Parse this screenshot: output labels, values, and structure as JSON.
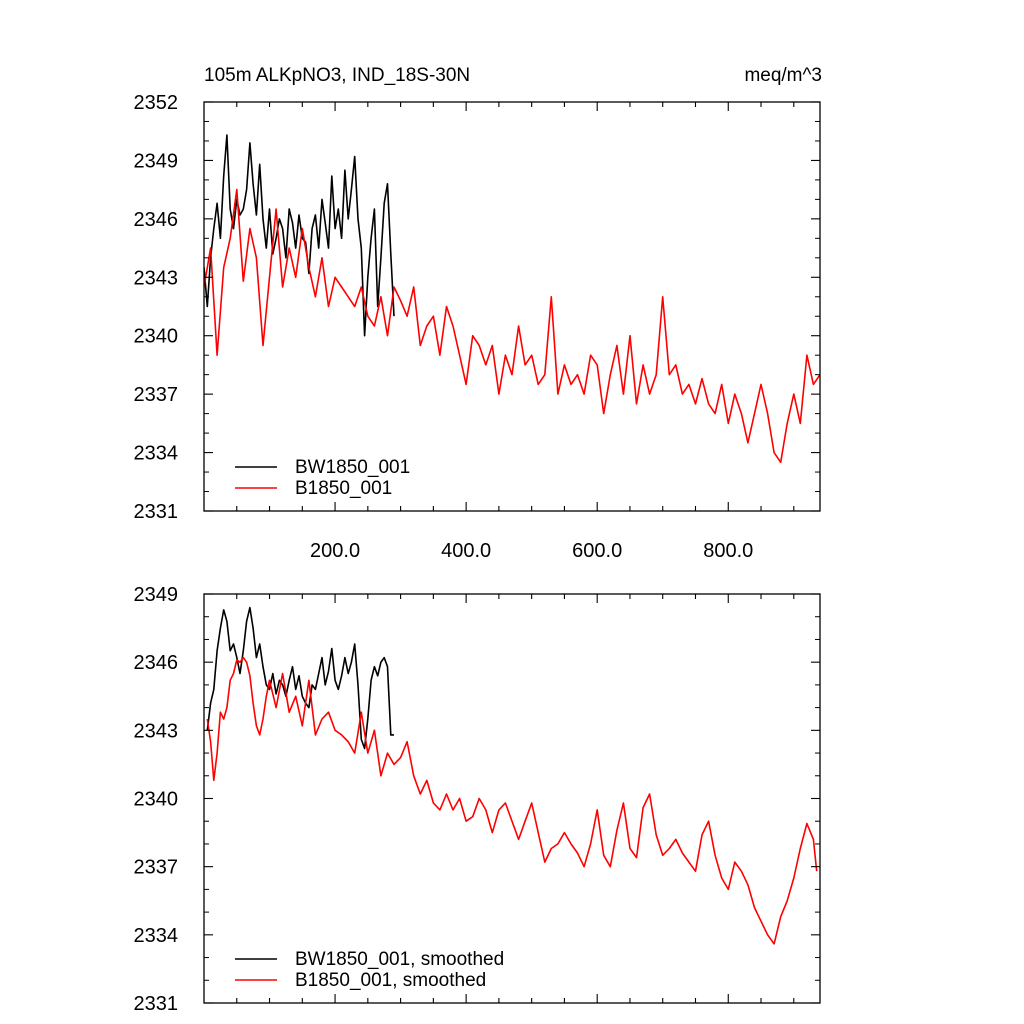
{
  "header": {
    "title": "105m ALKpNO3, IND_18S-30N",
    "units": "meq/m^3"
  },
  "chart_data": [
    {
      "type": "line",
      "title": "105m ALKpNO3, IND_18S-30N",
      "units": "meq/m^3",
      "xlim": [
        0,
        940
      ],
      "ylim": [
        2331,
        2352
      ],
      "yticks": [
        2331,
        2334,
        2337,
        2340,
        2343,
        2346,
        2349,
        2352
      ],
      "ytick_labels": [
        "2331",
        "2334",
        "2337",
        "2340",
        "2343",
        "2346",
        "2349",
        "2352"
      ],
      "xticks": [
        200,
        400,
        600,
        800
      ],
      "xtick_labels": [
        "200.0",
        "400.0",
        "600.0",
        "800.0"
      ],
      "legend": "bottom-left",
      "series": [
        {
          "name": "BW1850_001",
          "color": "#000000",
          "x": [
            0,
            5,
            10,
            15,
            20,
            25,
            30,
            35,
            40,
            45,
            50,
            55,
            60,
            65,
            70,
            75,
            80,
            85,
            90,
            95,
            100,
            105,
            110,
            115,
            120,
            125,
            130,
            135,
            140,
            145,
            150,
            155,
            160,
            165,
            170,
            175,
            180,
            185,
            190,
            195,
            200,
            205,
            210,
            215,
            220,
            225,
            230,
            235,
            240,
            245,
            250,
            255,
            260,
            265,
            270,
            275,
            280,
            285,
            290
          ],
          "y": [
            2343.5,
            2341.5,
            2344.0,
            2345.5,
            2346.8,
            2345.0,
            2348.2,
            2350.3,
            2346.5,
            2345.5,
            2347.0,
            2346.2,
            2346.5,
            2347.5,
            2349.9,
            2347.8,
            2346.2,
            2348.8,
            2346.0,
            2344.5,
            2346.5,
            2344.2,
            2345.0,
            2346.0,
            2345.5,
            2344.0,
            2346.5,
            2345.8,
            2344.5,
            2346.2,
            2345.0,
            2344.8,
            2343.2,
            2345.5,
            2346.2,
            2344.5,
            2347.0,
            2345.8,
            2344.5,
            2348.2,
            2345.5,
            2346.5,
            2345.0,
            2348.5,
            2346.0,
            2347.5,
            2349.2,
            2346.0,
            2344.5,
            2340.0,
            2343.0,
            2345.0,
            2346.5,
            2341.5,
            2344.0,
            2346.8,
            2347.8,
            2344.2,
            2341.0
          ]
        },
        {
          "name": "B1850_001",
          "color": "#ff0000",
          "x": [
            0,
            10,
            20,
            30,
            40,
            50,
            60,
            70,
            80,
            90,
            100,
            110,
            120,
            130,
            140,
            150,
            160,
            170,
            180,
            190,
            200,
            210,
            220,
            230,
            240,
            250,
            260,
            270,
            280,
            290,
            300,
            310,
            320,
            330,
            340,
            350,
            360,
            370,
            380,
            390,
            400,
            410,
            420,
            430,
            440,
            450,
            460,
            470,
            480,
            490,
            500,
            510,
            520,
            530,
            540,
            550,
            560,
            570,
            580,
            590,
            600,
            610,
            620,
            630,
            640,
            650,
            660,
            670,
            680,
            690,
            700,
            710,
            720,
            730,
            740,
            750,
            760,
            770,
            780,
            790,
            800,
            810,
            820,
            830,
            840,
            850,
            860,
            870,
            880,
            890,
            900,
            910,
            920,
            930,
            940
          ],
          "y": [
            2342.5,
            2344.5,
            2339.0,
            2343.5,
            2345.0,
            2347.5,
            2342.8,
            2345.5,
            2344.0,
            2339.5,
            2343.0,
            2346.5,
            2342.5,
            2344.5,
            2343.0,
            2345.5,
            2343.5,
            2342.0,
            2344.0,
            2341.5,
            2343.0,
            2342.5,
            2342.0,
            2341.5,
            2342.5,
            2341.0,
            2340.5,
            2342.0,
            2340.0,
            2342.5,
            2341.8,
            2341.0,
            2342.5,
            2339.5,
            2340.5,
            2341.0,
            2339.0,
            2341.5,
            2340.5,
            2339.0,
            2337.5,
            2340.0,
            2339.5,
            2338.5,
            2339.5,
            2337.0,
            2339.0,
            2338.0,
            2340.5,
            2338.5,
            2339.0,
            2337.5,
            2338.0,
            2342.0,
            2337.0,
            2338.5,
            2337.5,
            2338.0,
            2337.0,
            2339.0,
            2338.5,
            2336.0,
            2338.0,
            2339.5,
            2337.0,
            2340.0,
            2336.5,
            2338.5,
            2337.0,
            2338.0,
            2342.0,
            2338.0,
            2338.5,
            2337.0,
            2337.5,
            2336.5,
            2337.8,
            2336.5,
            2336.0,
            2337.5,
            2335.5,
            2337.0,
            2336.0,
            2334.5,
            2336.0,
            2337.5,
            2336.0,
            2334.0,
            2333.5,
            2335.5,
            2337.0,
            2335.5,
            2339.0,
            2337.5,
            2338.0
          ]
        }
      ]
    },
    {
      "type": "line",
      "xlim": [
        0,
        940
      ],
      "ylim": [
        2331,
        2349
      ],
      "yticks": [
        2331,
        2334,
        2337,
        2340,
        2343,
        2346,
        2349
      ],
      "ytick_labels": [
        "2331",
        "2334",
        "2337",
        "2340",
        "2343",
        "2346",
        "2349"
      ],
      "xticks": [
        200,
        400,
        600,
        800
      ],
      "legend": "bottom-left",
      "series": [
        {
          "name": "BW1850_001, smoothed",
          "color": "#000000",
          "x": [
            5,
            10,
            15,
            20,
            25,
            30,
            35,
            40,
            45,
            50,
            55,
            60,
            65,
            70,
            75,
            80,
            85,
            90,
            95,
            100,
            105,
            110,
            115,
            120,
            125,
            130,
            135,
            140,
            145,
            150,
            155,
            160,
            165,
            170,
            175,
            180,
            185,
            190,
            195,
            200,
            205,
            210,
            215,
            220,
            225,
            230,
            235,
            240,
            245,
            250,
            255,
            260,
            265,
            270,
            275,
            280,
            285,
            290
          ],
          "y": [
            2343.0,
            2344.2,
            2344.8,
            2346.5,
            2347.5,
            2348.3,
            2347.8,
            2346.5,
            2346.8,
            2346.2,
            2345.5,
            2346.5,
            2347.8,
            2348.4,
            2347.5,
            2346.2,
            2346.8,
            2345.8,
            2345.0,
            2344.8,
            2345.5,
            2344.6,
            2345.2,
            2345.0,
            2344.5,
            2345.2,
            2345.8,
            2344.8,
            2345.4,
            2344.5,
            2344.2,
            2344.0,
            2345.0,
            2344.8,
            2345.5,
            2346.2,
            2345.0,
            2345.6,
            2346.6,
            2345.2,
            2344.8,
            2345.4,
            2346.2,
            2345.5,
            2346.0,
            2346.8,
            2345.0,
            2342.6,
            2342.2,
            2343.5,
            2345.2,
            2345.8,
            2345.4,
            2346.0,
            2346.2,
            2345.8,
            2342.8,
            2342.8
          ]
        },
        {
          "name": "B1850_001, smoothed",
          "color": "#ff0000",
          "x": [
            5,
            10,
            15,
            20,
            25,
            30,
            35,
            40,
            45,
            50,
            55,
            60,
            65,
            70,
            75,
            80,
            85,
            90,
            95,
            100,
            110,
            120,
            130,
            140,
            150,
            160,
            170,
            180,
            190,
            200,
            210,
            220,
            230,
            240,
            250,
            260,
            270,
            280,
            290,
            300,
            310,
            320,
            330,
            340,
            350,
            360,
            370,
            380,
            390,
            400,
            410,
            420,
            430,
            440,
            450,
            460,
            470,
            480,
            490,
            500,
            510,
            520,
            530,
            540,
            550,
            560,
            570,
            580,
            590,
            600,
            610,
            620,
            630,
            640,
            650,
            660,
            670,
            680,
            690,
            700,
            710,
            720,
            730,
            740,
            750,
            760,
            770,
            780,
            790,
            800,
            810,
            820,
            830,
            840,
            850,
            860,
            870,
            880,
            890,
            900,
            910,
            920,
            930,
            935
          ],
          "y": [
            2343.5,
            2342.5,
            2340.8,
            2342.0,
            2343.8,
            2343.5,
            2344.0,
            2345.2,
            2345.5,
            2346.1,
            2346.0,
            2346.2,
            2346.0,
            2345.4,
            2344.2,
            2343.2,
            2342.8,
            2343.5,
            2344.5,
            2345.2,
            2344.0,
            2345.5,
            2343.8,
            2344.5,
            2343.2,
            2345.2,
            2342.8,
            2343.5,
            2343.8,
            2343.0,
            2342.8,
            2342.5,
            2342.0,
            2343.8,
            2342.0,
            2343.0,
            2341.0,
            2342.0,
            2341.5,
            2341.8,
            2342.5,
            2341.0,
            2340.2,
            2340.8,
            2339.8,
            2339.5,
            2340.2,
            2339.5,
            2340.0,
            2339.0,
            2339.2,
            2340.0,
            2339.5,
            2338.5,
            2339.5,
            2339.8,
            2339.0,
            2338.2,
            2339.0,
            2339.8,
            2338.5,
            2337.2,
            2337.8,
            2338.0,
            2338.5,
            2338.0,
            2337.6,
            2337.0,
            2338.0,
            2339.5,
            2337.5,
            2337.0,
            2338.6,
            2339.8,
            2337.8,
            2337.4,
            2339.6,
            2340.2,
            2338.4,
            2337.5,
            2337.8,
            2338.2,
            2337.6,
            2337.2,
            2336.8,
            2338.4,
            2339.0,
            2337.5,
            2336.5,
            2336.0,
            2337.2,
            2336.8,
            2336.2,
            2335.2,
            2334.6,
            2334.0,
            2333.6,
            2334.8,
            2335.5,
            2336.5,
            2337.8,
            2338.9,
            2338.2,
            2336.8
          ]
        }
      ]
    }
  ]
}
